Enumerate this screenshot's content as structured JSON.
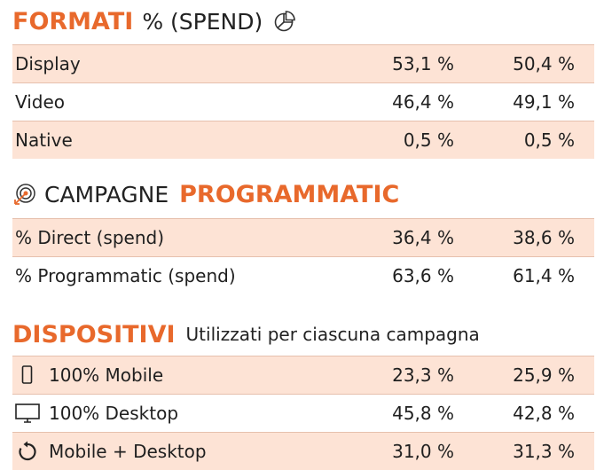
{
  "formati": {
    "title_bold": "FORMATI",
    "title_light": "% (SPEND)",
    "icon": "pie-chart-icon",
    "rows": [
      {
        "label": "Display",
        "v1": "53,1 %",
        "v2": "50,4 %"
      },
      {
        "label": "Video",
        "v1": "46,4 %",
        "v2": "49,1 %"
      },
      {
        "label": "Native",
        "v1": "0,5 %",
        "v2": "0,5 %"
      }
    ]
  },
  "campagne": {
    "icon": "target-icon",
    "title_light": "CAMPAGNE",
    "title_bold": "PROGRAMMATIC",
    "rows": [
      {
        "label": "% Direct (spend)",
        "v1": "36,4 %",
        "v2": "38,6 %"
      },
      {
        "label": "% Programmatic (spend)",
        "v1": "63,6 %",
        "v2": "61,4 %"
      }
    ]
  },
  "dispositivi": {
    "title_bold": "DISPOSITIVI",
    "title_light": "Utilizzati per ciascuna campagna",
    "rows": [
      {
        "icon": "mobile-phone-icon",
        "label": "100% Mobile",
        "v1": "23,3 %",
        "v2": "25,9 %"
      },
      {
        "icon": "desktop-monitor-icon",
        "label": "100% Desktop",
        "v1": "45,8 %",
        "v2": "42,8 %"
      },
      {
        "icon": "refresh-icon",
        "label": "Mobile + Desktop",
        "v1": "31,0 %",
        "v2": "31,3 %"
      }
    ]
  },
  "colors": {
    "accent": "#e8692c",
    "row_shade": "#fde3d5",
    "divider": "#8a8a8a"
  }
}
